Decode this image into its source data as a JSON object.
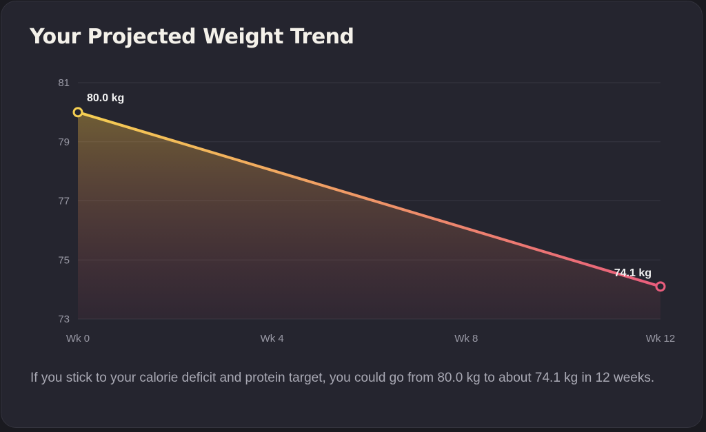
{
  "card": {
    "title": "Your Projected Weight Trend",
    "description": "If you stick to your calorie deficit and protein target, you could go from 80.0 kg to about 74.1 kg in 12 weeks."
  },
  "colors": {
    "background": "#25252f",
    "line_start": "#f5cf52",
    "line_end": "#e95d7d",
    "grid": "#363642",
    "title": "#f4f1ea",
    "axis_text": "#9a9aa6"
  },
  "chart_data": {
    "type": "area",
    "title": "",
    "xlabel": "",
    "ylabel": "",
    "x_ticks": [
      "Wk 0",
      "Wk 4",
      "Wk 8",
      "Wk 12"
    ],
    "x_tick_values": [
      0,
      4,
      8,
      12
    ],
    "y_ticks": [
      73,
      75,
      77,
      79,
      81
    ],
    "ylim": [
      73,
      81
    ],
    "xlim": [
      0,
      12
    ],
    "grid": true,
    "legend": false,
    "series": [
      {
        "x": [
          0,
          12
        ],
        "y": [
          80.0,
          74.1
        ]
      }
    ],
    "annotations": [
      {
        "x": 0,
        "y": 80.0,
        "text": "80.0 kg"
      },
      {
        "x": 12,
        "y": 74.1,
        "text": "74.1 kg"
      }
    ]
  }
}
